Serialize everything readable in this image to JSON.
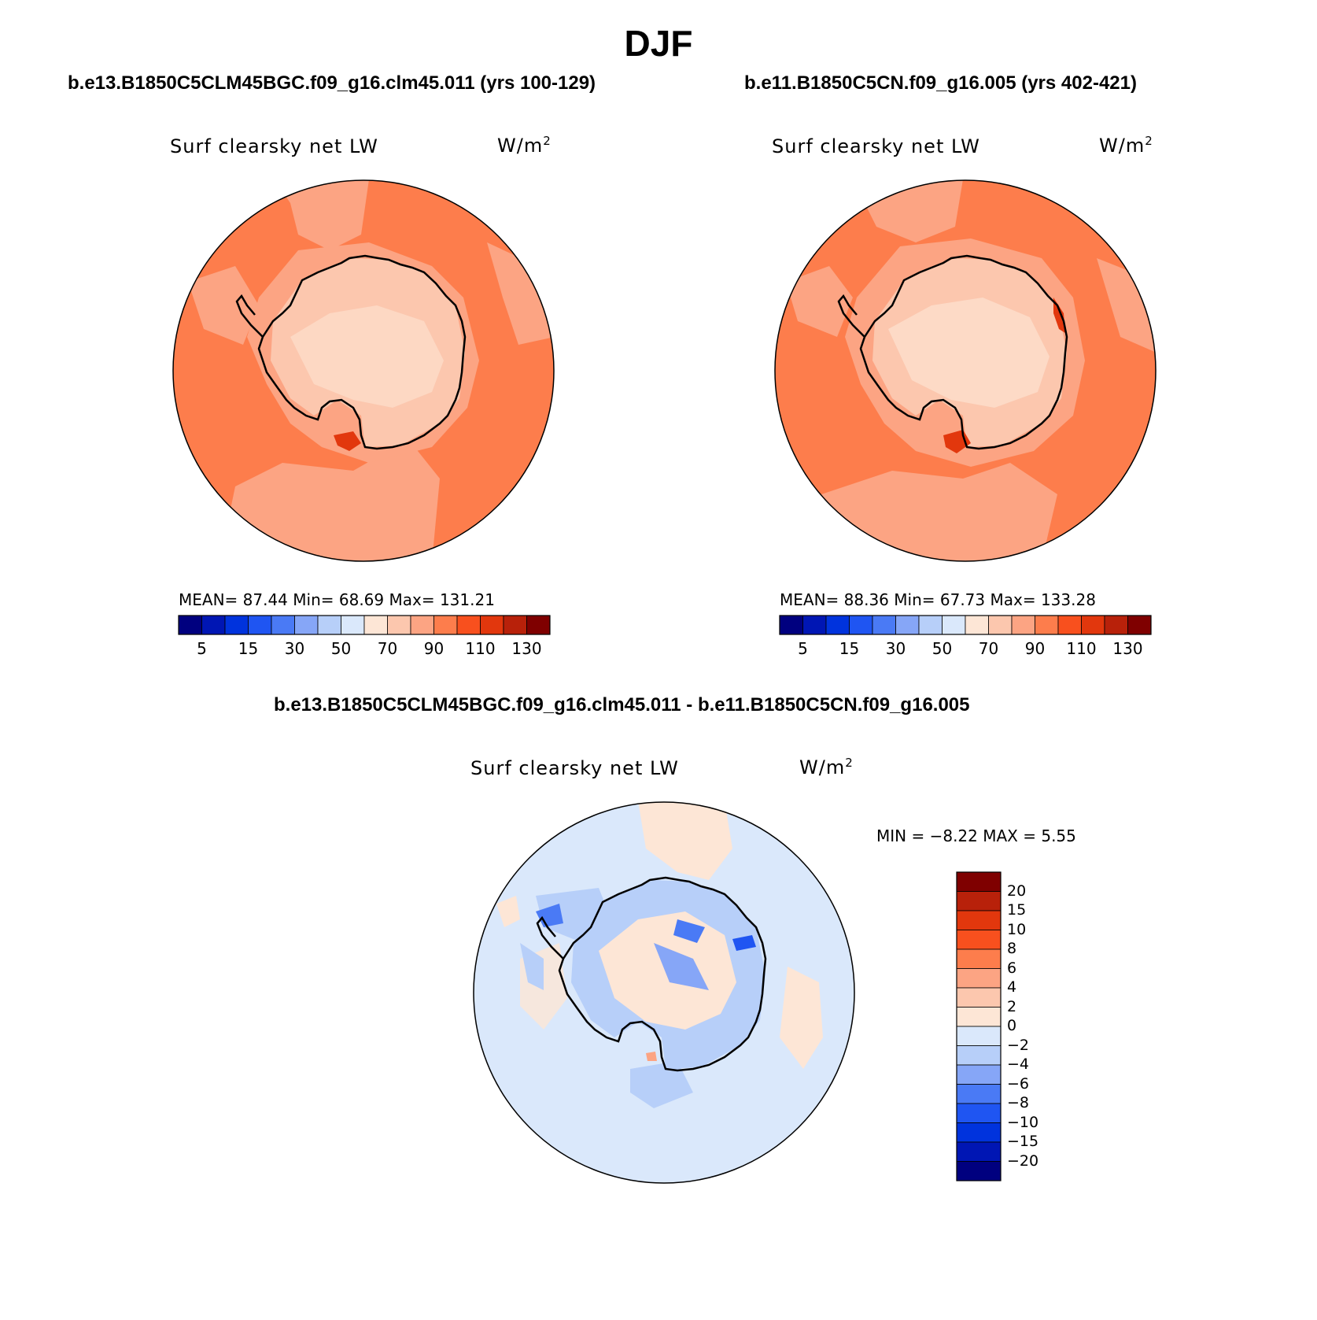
{
  "title": "DJF",
  "panels": [
    {
      "case": "b.e13.B1850C5CLM45BGC.f09_g16.clm45.011 (yrs 100-129)",
      "variable": "Surf clearsky net LW",
      "units_base": "W/m",
      "units_exp": "2",
      "stats": "MEAN=   87.44   Min=   68.69   Max= 131.21"
    },
    {
      "case": "b.e11.B1850C5CN.f09_g16.005 (yrs 402-421)",
      "variable": "Surf clearsky net LW",
      "units_base": "W/m",
      "units_exp": "2",
      "stats": "MEAN=   88.36   Min=   67.73   Max= 133.28"
    }
  ],
  "diff": {
    "case": "b.e13.B1850C5CLM45BGC.f09_g16.clm45.011 - b.e11.B1850C5CN.f09_g16.005",
    "variable": "Surf clearsky net LW",
    "units_base": "W/m",
    "units_exp": "2",
    "stats": "MIN =   −8.22  MAX =     5.55"
  },
  "colorbar_abs": {
    "colors": [
      "#00007f",
      "#0016b4",
      "#0033dd",
      "#1f55f2",
      "#4a7af5",
      "#86a6f7",
      "#b7cff9",
      "#dae8fb",
      "#fde6d6",
      "#fcc7ae",
      "#fca483",
      "#fd7d4c",
      "#f8501e",
      "#e2370d",
      "#b8210a",
      "#7f0000"
    ],
    "tick_labels": [
      "5",
      "15",
      "30",
      "50",
      "70",
      "90",
      "110",
      "130"
    ]
  },
  "colorbar_diff": {
    "colors": [
      "#00007f",
      "#0016b4",
      "#0033dd",
      "#1f55f2",
      "#4a7af5",
      "#86a6f7",
      "#b7cff9",
      "#dae8fb",
      "#fde6d6",
      "#fcc7ae",
      "#fca483",
      "#fd7d4c",
      "#f8501e",
      "#e2370d",
      "#b8210a",
      "#7f0000"
    ],
    "tick_labels": [
      "20",
      "15",
      "10",
      "8",
      "6",
      "4",
      "2",
      "0",
      "−2",
      "−4",
      "−6",
      "−8",
      "−10",
      "−15",
      "−20"
    ]
  }
}
